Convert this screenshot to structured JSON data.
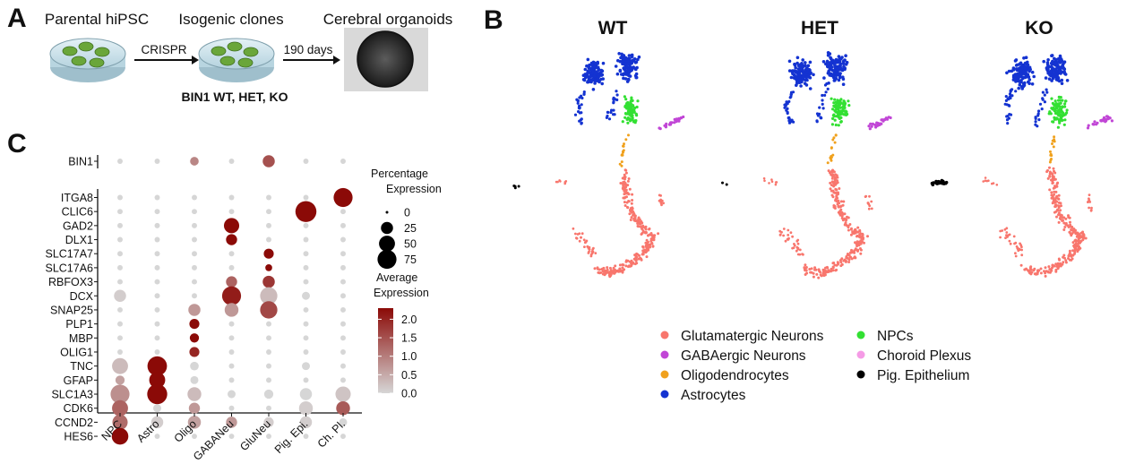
{
  "panels": {
    "a": {
      "letter": "A",
      "steps": [
        "Parental hiPSC",
        "Isogenic clones",
        "Cerebral organoids"
      ],
      "arrow1_label": "CRISPR",
      "arrow2_label": "190 days",
      "clone_caption": "BIN1 WT, HET, KO",
      "colors": {
        "dish": "#cfe3ec",
        "colony": "#6aa63a"
      }
    },
    "b": {
      "letter": "B",
      "conditions": [
        "WT",
        "HET",
        "KO"
      ],
      "clusters": [
        {
          "name": "Glutamatergic Neurons",
          "color": "#f8766d"
        },
        {
          "name": "GABAergic Neurons",
          "color": "#c146d6"
        },
        {
          "name": "Oligodendrocytes",
          "color": "#f0a11d"
        },
        {
          "name": "Astrocytes",
          "color": "#1433d1"
        },
        {
          "name": "NPCs",
          "color": "#33e033"
        },
        {
          "name": "Choroid Plexus",
          "color": "#f59be6"
        },
        {
          "name": "Pig. Epithelium",
          "color": "#000000"
        }
      ]
    },
    "c": {
      "letter": "C"
    }
  },
  "chart_data": {
    "type": "dotplot",
    "categories": [
      "NPC",
      "Astro",
      "Oligo",
      "GABANeu",
      "GluNeu",
      "Pig. Epi.",
      "Ch. Pl."
    ],
    "genes_top": [
      "BIN1"
    ],
    "genes": [
      "ITGA8",
      "CLIC6",
      "GAD2",
      "DLX1",
      "SLC17A7",
      "SLC17A6",
      "RBFOX3",
      "DCX",
      "SNAP25",
      "PLP1",
      "MBP",
      "OLIG1",
      "TNC",
      "GFAP",
      "SLC1A3",
      "CDK6",
      "CCND2",
      "HES6"
    ],
    "pct": {
      "BIN1": [
        2,
        2,
        10,
        2,
        25,
        2,
        2
      ],
      "ITGA8": [
        2,
        2,
        2,
        2,
        2,
        2,
        75
      ],
      "CLIC6": [
        2,
        2,
        2,
        2,
        2,
        95,
        2
      ],
      "GAD2": [
        2,
        2,
        2,
        45,
        2,
        2,
        2
      ],
      "DLX1": [
        2,
        2,
        2,
        20,
        2,
        2,
        2
      ],
      "SLC17A7": [
        2,
        2,
        2,
        2,
        15,
        2,
        2
      ],
      "SLC17A6": [
        2,
        2,
        2,
        2,
        5,
        2,
        2
      ],
      "RBFOX3": [
        2,
        2,
        2,
        20,
        25,
        2,
        2
      ],
      "DCX": [
        25,
        2,
        2,
        75,
        60,
        8,
        2
      ],
      "SNAP25": [
        2,
        2,
        25,
        35,
        60,
        2,
        2
      ],
      "PLP1": [
        2,
        2,
        15,
        2,
        2,
        2,
        2
      ],
      "MBP": [
        2,
        2,
        12,
        2,
        2,
        2,
        2
      ],
      "OLIG1": [
        2,
        2,
        15,
        2,
        2,
        2,
        2
      ],
      "TNC": [
        50,
        80,
        10,
        2,
        2,
        8,
        2
      ],
      "GFAP": [
        12,
        50,
        8,
        2,
        2,
        2,
        2
      ],
      "SLC1A3": [
        75,
        85,
        35,
        8,
        12,
        25,
        45
      ],
      "CDK6": [
        50,
        8,
        20,
        2,
        2,
        35,
        35
      ],
      "CCND2": [
        45,
        25,
        30,
        20,
        15,
        25,
        8
      ],
      "HES6": [
        55,
        2,
        2,
        2,
        2,
        2,
        2
      ]
    },
    "avg": {
      "BIN1": [
        0,
        0,
        0.9,
        0,
        1.5,
        0,
        0
      ],
      "ITGA8": [
        0,
        0,
        0,
        0,
        0,
        0,
        2.3
      ],
      "CLIC6": [
        0,
        0,
        0,
        0,
        0,
        2.3,
        0
      ],
      "GAD2": [
        0,
        0,
        0,
        2.3,
        0,
        0,
        0
      ],
      "DLX1": [
        0,
        0,
        0,
        2.3,
        0,
        0,
        0
      ],
      "SLC17A7": [
        0,
        0,
        0,
        0,
        2.3,
        0,
        0
      ],
      "SLC17A6": [
        0,
        0,
        0,
        0,
        2.3,
        0,
        0
      ],
      "RBFOX3": [
        0,
        0,
        0,
        1.3,
        1.8,
        0,
        0
      ],
      "DCX": [
        0.1,
        0,
        0,
        2.1,
        0.3,
        0,
        0
      ],
      "SNAP25": [
        0,
        0,
        0.7,
        0.7,
        1.6,
        0,
        0
      ],
      "PLP1": [
        0,
        0,
        2.3,
        0,
        0,
        0,
        0
      ],
      "MBP": [
        0,
        0,
        2.3,
        0,
        0,
        0,
        0
      ],
      "OLIG1": [
        0,
        0,
        2.0,
        0,
        0,
        0,
        0
      ],
      "TNC": [
        0.3,
        2.3,
        0,
        0,
        0,
        0,
        0
      ],
      "GFAP": [
        0.6,
        2.3,
        0,
        0,
        0,
        0,
        0
      ],
      "SLC1A3": [
        0.8,
        2.3,
        0.3,
        0,
        0,
        0,
        0.2
      ],
      "CDK6": [
        1.3,
        0,
        0.7,
        0,
        0,
        0.1,
        1.4
      ],
      "CCND2": [
        1.2,
        0.1,
        0.6,
        0.7,
        0.1,
        0.1,
        0
      ],
      "HES6": [
        2.3,
        0,
        0,
        0,
        0,
        0,
        0
      ]
    },
    "size_legend": {
      "title": [
        "Percentage",
        "Expression"
      ],
      "values": [
        0,
        25,
        50,
        75
      ],
      "labels": [
        "0",
        "25",
        "50",
        "75"
      ]
    },
    "color_legend": {
      "title": [
        "Average",
        "Expression"
      ],
      "ticks": [
        "2.0",
        "1.5",
        "1.0",
        "0.5",
        "0.0"
      ],
      "tick_values": [
        2.0,
        1.5,
        1.0,
        0.5,
        0.0
      ],
      "range": [
        0,
        2.3
      ],
      "low_color": "#d6d6d6",
      "high_color": "#8b0a07"
    }
  }
}
